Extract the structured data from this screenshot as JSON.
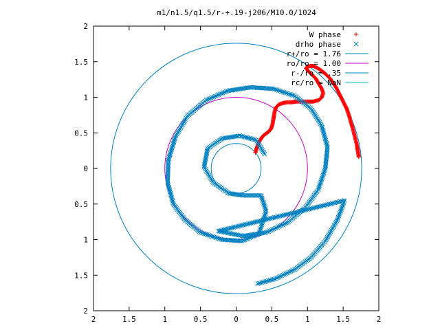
{
  "chart_data": {
    "type": "scatter",
    "title": "m1/n1.5/q1.5/r-+.19-j206/M10.0/1024",
    "xlim": [
      -2,
      2
    ],
    "ylim": [
      -2,
      2
    ],
    "x_ticks": [
      -2,
      -1.5,
      -1,
      -0.5,
      0,
      0.5,
      1,
      1.5,
      2
    ],
    "y_ticks": [
      -2,
      -1.5,
      -1,
      -0.5,
      0,
      0.5,
      1,
      1.5,
      2
    ],
    "x_tick_labels": [
      "2",
      "1.5",
      "1",
      "0.5",
      "0",
      "0.5",
      "1",
      "1.5",
      "2"
    ],
    "y_tick_labels": [
      "2",
      "1.5",
      "1",
      "0.5",
      "0",
      "0.5",
      "1",
      "1.5",
      "2"
    ],
    "grid": false,
    "legend_position": "top-right",
    "series": [
      {
        "name": "W phase",
        "marker": "+",
        "color": "#ff0000",
        "points": [
          [
            1.72,
            0.16
          ],
          [
            1.71,
            0.22
          ],
          [
            1.7,
            0.28
          ],
          [
            1.69,
            0.34
          ],
          [
            1.67,
            0.42
          ],
          [
            1.65,
            0.5
          ],
          [
            1.63,
            0.58
          ],
          [
            1.61,
            0.64
          ],
          [
            1.59,
            0.72
          ],
          [
            1.57,
            0.78
          ],
          [
            1.55,
            0.84
          ],
          [
            1.52,
            0.9
          ],
          [
            1.49,
            0.96
          ],
          [
            1.46,
            1.02
          ],
          [
            1.43,
            1.08
          ],
          [
            1.4,
            1.14
          ],
          [
            1.36,
            1.2
          ],
          [
            1.32,
            1.26
          ],
          [
            1.28,
            1.3
          ],
          [
            1.24,
            1.34
          ],
          [
            1.2,
            1.37
          ],
          [
            1.16,
            1.4
          ],
          [
            1.12,
            1.42
          ],
          [
            1.08,
            1.44
          ],
          [
            1.04,
            1.44
          ],
          [
            1.0,
            1.43
          ],
          [
            0.98,
            1.41
          ],
          [
            1.0,
            1.38
          ],
          [
            1.04,
            1.34
          ],
          [
            1.08,
            1.3
          ],
          [
            1.12,
            1.26
          ],
          [
            1.14,
            1.22
          ],
          [
            1.17,
            1.17
          ],
          [
            1.2,
            1.12
          ],
          [
            1.22,
            1.06
          ],
          [
            1.2,
            1.0
          ],
          [
            1.16,
            0.96
          ],
          [
            1.12,
            0.95
          ],
          [
            1.08,
            0.94
          ],
          [
            1.02,
            0.94
          ],
          [
            0.96,
            0.94
          ],
          [
            0.9,
            0.94
          ],
          [
            0.84,
            0.94
          ],
          [
            0.78,
            0.93
          ],
          [
            0.72,
            0.93
          ],
          [
            0.66,
            0.92
          ],
          [
            0.6,
            0.9
          ],
          [
            0.56,
            0.86
          ],
          [
            0.54,
            0.8
          ],
          [
            0.53,
            0.74
          ],
          [
            0.52,
            0.68
          ],
          [
            0.51,
            0.62
          ],
          [
            0.49,
            0.56
          ],
          [
            0.46,
            0.52
          ],
          [
            0.42,
            0.49
          ],
          [
            0.38,
            0.46
          ],
          [
            0.35,
            0.42
          ],
          [
            0.32,
            0.37
          ],
          [
            0.3,
            0.32
          ],
          [
            0.28,
            0.26
          ],
          [
            0.27,
            0.22
          ]
        ]
      },
      {
        "name": "drho phase",
        "marker": "x",
        "color": "#0080c0",
        "points": [
          [
            0.3,
            -1.62
          ],
          [
            0.55,
            -1.55
          ],
          [
            0.82,
            -1.42
          ],
          [
            1.05,
            -1.25
          ],
          [
            1.25,
            -1.02
          ],
          [
            1.42,
            -0.72
          ],
          [
            1.52,
            -0.45
          ],
          [
            -0.25,
            -0.88
          ],
          [
            0.1,
            -0.95
          ],
          [
            0.42,
            -0.9
          ],
          [
            0.72,
            -0.76
          ],
          [
            0.97,
            -0.55
          ],
          [
            1.15,
            -0.3
          ],
          [
            1.25,
            0.0
          ],
          [
            1.28,
            0.3
          ],
          [
            1.2,
            0.6
          ],
          [
            1.05,
            0.84
          ],
          [
            0.82,
            1.02
          ],
          [
            0.52,
            1.12
          ],
          [
            0.2,
            1.14
          ],
          [
            -0.12,
            1.09
          ],
          [
            -0.42,
            0.96
          ],
          [
            -0.68,
            0.74
          ],
          [
            -0.85,
            0.45
          ],
          [
            -0.95,
            0.12
          ],
          [
            -0.96,
            -0.2
          ],
          [
            -0.88,
            -0.5
          ],
          [
            -0.72,
            -0.72
          ],
          [
            -0.5,
            -0.9
          ],
          [
            -0.2,
            -1.0
          ],
          [
            0.08,
            -1.02
          ],
          [
            0.32,
            -0.92
          ],
          [
            0.42,
            -0.6
          ],
          [
            0.35,
            -0.38
          ],
          [
            0.1,
            -0.38
          ],
          [
            -0.1,
            -0.35
          ],
          [
            -0.32,
            -0.2
          ],
          [
            -0.45,
            0.02
          ],
          [
            -0.4,
            0.28
          ],
          [
            -0.2,
            0.42
          ],
          [
            0.05,
            0.46
          ],
          [
            0.28,
            0.4
          ],
          [
            0.4,
            0.2
          ]
        ]
      }
    ],
    "circles": [
      {
        "name": "r+/ro = 1.76",
        "radius": 1.76,
        "color": "#0080c0"
      },
      {
        "name": "ro/ro = 1.00",
        "radius": 1.0,
        "color": "#c000c0"
      },
      {
        "name": "r-/ro = .35",
        "radius": 0.35,
        "color": "#0080c0"
      },
      {
        "name": "rc/ro = NaN",
        "radius": null,
        "color": "#00c0c0"
      }
    ]
  }
}
